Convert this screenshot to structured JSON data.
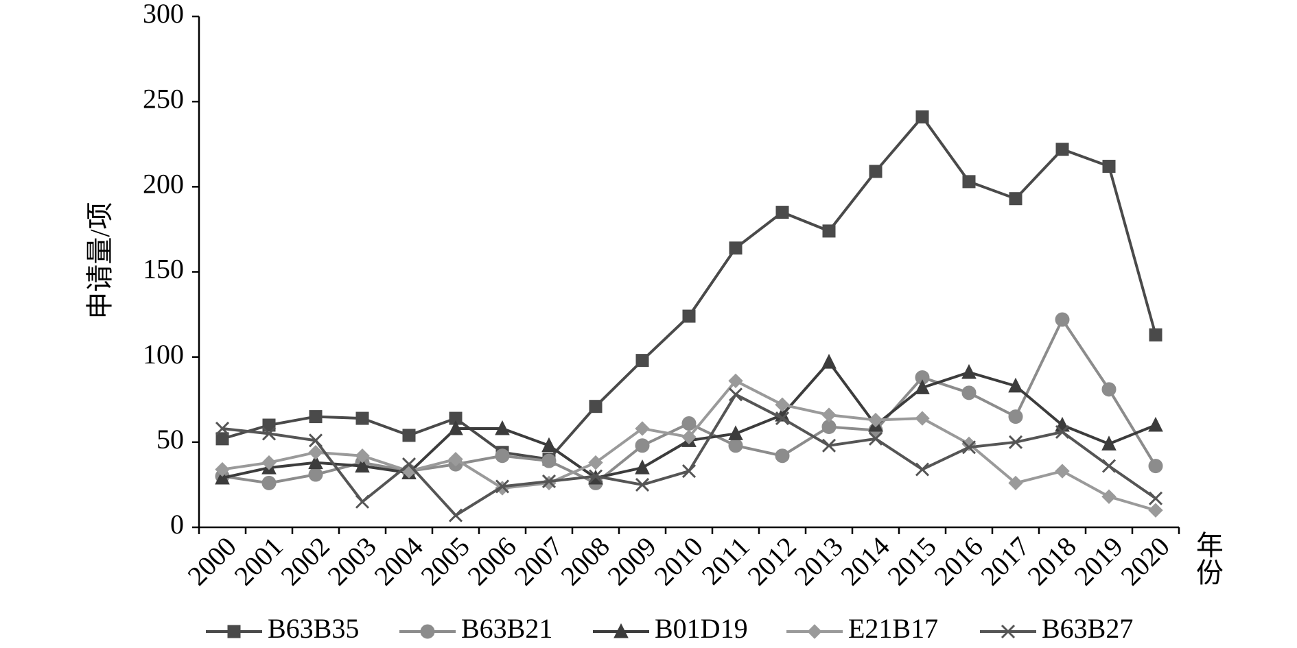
{
  "chart_data": {
    "type": "line",
    "y_label": "申请量/项",
    "x_label": "年份",
    "categories": [
      "2000",
      "2001",
      "2002",
      "2003",
      "2004",
      "2005",
      "2006",
      "2007",
      "2008",
      "2009",
      "2010",
      "2011",
      "2012",
      "2013",
      "2014",
      "2015",
      "2016",
      "2017",
      "2018",
      "2019",
      "2020"
    ],
    "series": [
      {
        "name": "B63B35",
        "color": "#4a4a4a",
        "marker": "square",
        "values": [
          52,
          60,
          65,
          64,
          54,
          64,
          44,
          40,
          71,
          98,
          124,
          164,
          185,
          174,
          209,
          241,
          203,
          193,
          222,
          212,
          113
        ]
      },
      {
        "name": "B63B21",
        "color": "#8c8c8c",
        "marker": "circle",
        "values": [
          30,
          26,
          31,
          38,
          33,
          37,
          42,
          39,
          26,
          48,
          61,
          48,
          42,
          59,
          57,
          88,
          79,
          65,
          122,
          81,
          36
        ]
      },
      {
        "name": "B01D19",
        "color": "#3c3c3c",
        "marker": "triangle",
        "values": [
          29,
          35,
          38,
          36,
          32,
          58,
          58,
          48,
          29,
          35,
          51,
          55,
          66,
          97,
          60,
          82,
          91,
          83,
          60,
          49,
          60
        ]
      },
      {
        "name": "E21B17",
        "color": "#9a9a9a",
        "marker": "diamond",
        "values": [
          34,
          38,
          44,
          42,
          33,
          40,
          23,
          26,
          38,
          58,
          53,
          86,
          72,
          66,
          63,
          64,
          49,
          26,
          33,
          18,
          10
        ]
      },
      {
        "name": "B63B27",
        "color": "#555555",
        "marker": "x",
        "values": [
          58,
          55,
          51,
          15,
          37,
          7,
          24,
          27,
          30,
          25,
          33,
          78,
          64,
          48,
          52,
          34,
          47,
          50,
          56,
          36,
          17
        ]
      }
    ],
    "ylim": [
      0,
      300
    ],
    "yticks": [
      0,
      50,
      100,
      150,
      200,
      250,
      300
    ],
    "grid": false
  }
}
